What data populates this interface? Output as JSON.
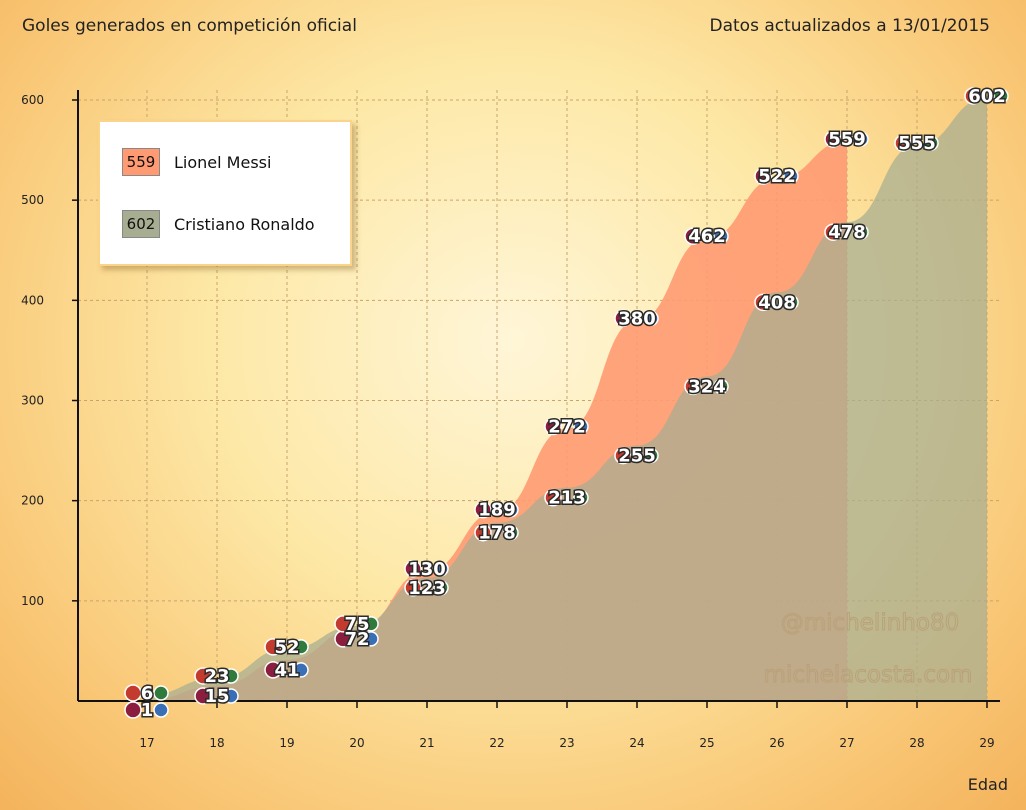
{
  "header": {
    "title": "Goles generados en competición oficial",
    "date_note": "Datos actualizados a 13/01/2015"
  },
  "legend": {
    "items": [
      {
        "value": "559",
        "name": "Lionel Messi",
        "color": "#ff9a72"
      },
      {
        "value": "602",
        "name": "Cristiano Ronaldo",
        "color": "#a6ad91"
      }
    ]
  },
  "watermark": {
    "line1": "@michelinho80",
    "line2": "michelacosta.com"
  },
  "chart_data": {
    "type": "area",
    "x": [
      17,
      18,
      19,
      20,
      21,
      22,
      23,
      24,
      25,
      26,
      27,
      28,
      29
    ],
    "series": [
      {
        "name": "Lionel Messi",
        "color": "#ff9a72",
        "values": [
          1,
          15,
          41,
          72,
          130,
          189,
          272,
          380,
          462,
          522,
          559,
          null,
          null
        ]
      },
      {
        "name": "Cristiano Ronaldo",
        "color": "#a6ad91",
        "values": [
          6,
          23,
          52,
          75,
          123,
          178,
          213,
          255,
          324,
          408,
          478,
          555,
          602
        ]
      }
    ],
    "xlabel": "Edad",
    "ylabel": "",
    "ylim": [
      0,
      630
    ],
    "yticks": [
      100,
      200,
      300,
      400,
      500,
      600
    ],
    "grid": true,
    "legend_position": "top-left"
  }
}
